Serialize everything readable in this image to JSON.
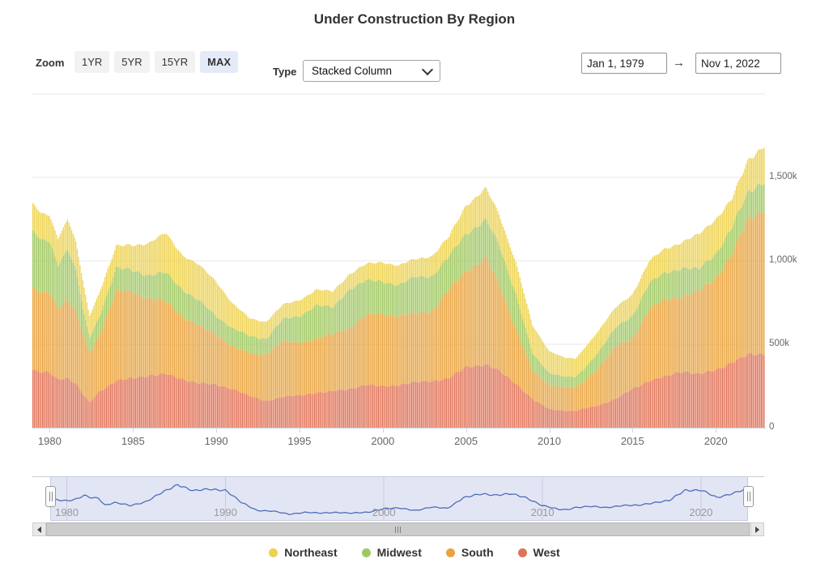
{
  "header": {
    "title": "Under Construction By Region"
  },
  "controls": {
    "zoom": {
      "label": "Zoom",
      "buttons": [
        {
          "label": "1YR",
          "selected": false
        },
        {
          "label": "5YR",
          "selected": false
        },
        {
          "label": "15YR",
          "selected": false
        },
        {
          "label": "MAX",
          "selected": true
        }
      ]
    },
    "type": {
      "label": "Type",
      "value": "Stacked Column"
    },
    "date_range": {
      "from": "Jan 1, 1979",
      "separator": "→",
      "to": "Nov 1, 2022"
    }
  },
  "chart_data": {
    "type": "bar",
    "stacked": true,
    "title": "Under Construction By Region",
    "x_start": 1979.0,
    "x_end": 2022.9167,
    "frequency": "monthly",
    "values_unit": "k (thousands)",
    "anchor_years": [
      1979,
      1979.5,
      1980,
      1980.5,
      1981.1,
      1981.6,
      1982,
      1982.4,
      1983,
      1984,
      1985,
      1986,
      1987,
      1988,
      1989,
      1990,
      1991,
      1992,
      1993,
      1994,
      1995,
      1996,
      1997,
      1998,
      1999,
      2000,
      2001,
      2002,
      2003,
      2004,
      2005,
      2006.2,
      2007,
      2008,
      2009,
      2010,
      2011,
      2011.6,
      2012,
      2013,
      2014,
      2015,
      2016,
      2017,
      2018,
      2019,
      2020,
      2021,
      2022,
      2022.92
    ],
    "series": [
      {
        "name": "West",
        "color": "#E07358",
        "values": [
          345,
          330,
          330,
          290,
          300,
          260,
          200,
          150,
          218,
          281,
          296,
          315,
          320,
          291,
          267,
          257,
          233,
          190,
          160,
          184,
          194,
          209,
          218,
          233,
          257,
          248,
          257,
          272,
          281,
          296,
          364,
          379,
          340,
          267,
          170,
          112,
          102,
          100,
          112,
          136,
          170,
          233,
          281,
          306,
          340,
          320,
          345,
          393,
          437,
          442
        ]
      },
      {
        "name": "South",
        "color": "#E8A33D",
        "values": [
          485,
          470,
          485,
          430,
          470,
          430,
          360,
          292,
          340,
          534,
          519,
          461,
          432,
          379,
          340,
          301,
          257,
          252,
          282,
          331,
          316,
          325,
          340,
          364,
          413,
          436,
          413,
          412,
          423,
          529,
          573,
          640,
          514,
          330,
          170,
          145,
          141,
          140,
          155,
          228,
          315,
          301,
          428,
          461,
          451,
          495,
          553,
          650,
          815,
          873
        ]
      },
      {
        "name": "Midwest",
        "color": "#A0C861",
        "values": [
          340,
          320,
          306,
          260,
          300,
          240,
          150,
          95,
          112,
          136,
          131,
          136,
          175,
          160,
          150,
          112,
          107,
          106,
          92,
          131,
          160,
          199,
          160,
          233,
          209,
          195,
          184,
          219,
          208,
          199,
          228,
          224,
          238,
          209,
          102,
          73,
          63,
          62,
          73,
          97,
          112,
          136,
          155,
          160,
          170,
          131,
          145,
          161,
          161,
          170
        ]
      },
      {
        "name": "Northeast",
        "color": "#EDD24F",
        "values": [
          165,
          160,
          156,
          160,
          180,
          170,
          170,
          133,
          145,
          131,
          151,
          195,
          238,
          204,
          214,
          209,
          146,
          107,
          102,
          87,
          97,
          92,
          97,
          92,
          97,
          116,
          117,
          107,
          122,
          117,
          170,
          189,
          185,
          189,
          170,
          131,
          111,
          111,
          121,
          126,
          121,
          131,
          131,
          146,
          155,
          209,
          209,
          170,
          194,
          215
        ]
      }
    ],
    "yaxis": {
      "side": "right",
      "max": 2030,
      "ticks": [
        {
          "v": 0,
          "label": "0"
        },
        {
          "v": 500,
          "label": "500k"
        },
        {
          "v": 1000,
          "label": "1,000k"
        },
        {
          "v": 1500,
          "label": "1,500k"
        }
      ],
      "gridlines": [
        500,
        1000,
        1500,
        2000
      ]
    },
    "xaxis": {
      "ticks": [
        1980,
        1985,
        1990,
        1995,
        2000,
        2005,
        2010,
        2015,
        2020
      ]
    },
    "legend_position": "bottom",
    "grid": true
  },
  "legend": {
    "items": [
      {
        "label": "Northeast",
        "color": "#EDD24F"
      },
      {
        "label": "Midwest",
        "color": "#A0C861"
      },
      {
        "label": "South",
        "color": "#E8A33D"
      },
      {
        "label": "West",
        "color": "#E07358"
      }
    ]
  },
  "navigator": {
    "series_shown": "Northeast",
    "labels": [
      "1980",
      "1990",
      "2000",
      "2010",
      "2020"
    ],
    "label_years": [
      1980,
      1990,
      2000,
      2010,
      2020
    ],
    "line_color": "#4F6CB8",
    "background": "#E2E6F4"
  }
}
